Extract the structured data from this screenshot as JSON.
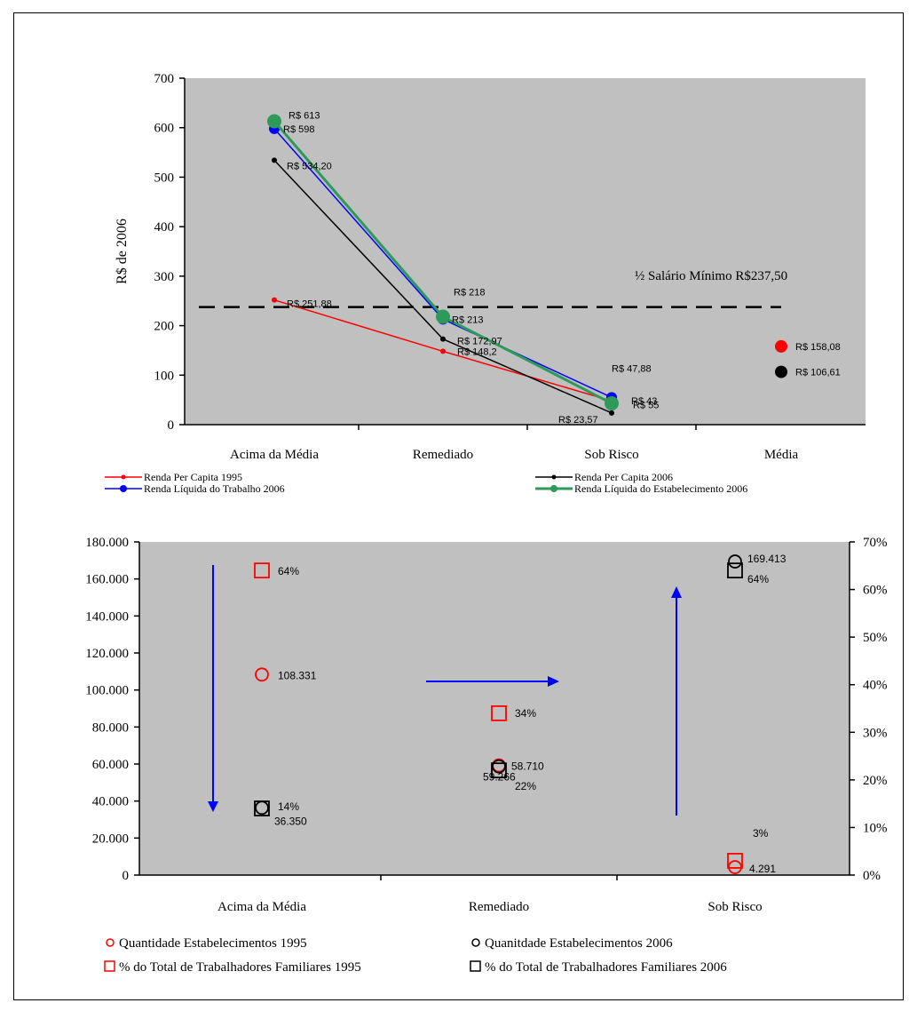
{
  "chart_data": [
    {
      "type": "line",
      "title": "",
      "ylabel": "R$ de 2006",
      "xlabel": "",
      "ylim": [
        0,
        700
      ],
      "yticks": [
        "0",
        "100",
        "200",
        "300",
        "400",
        "500",
        "600",
        "700"
      ],
      "categories": [
        "Acima da Média",
        "Remediado",
        "Sob Risco",
        "Média"
      ],
      "series": [
        {
          "name": "Renda Per Capita 1995",
          "color": "#ff0000",
          "values": [
            251.88,
            148.2,
            47.88,
            null
          ]
        },
        {
          "name": "Renda Per Capita 2006",
          "color": "#000000",
          "values": [
            534.2,
            172.97,
            23.57,
            null
          ]
        },
        {
          "name": "Renda Líquida do Trabalho 2006",
          "color": "#0000ff",
          "values": [
            598,
            213,
            55,
            null
          ]
        },
        {
          "name": "Renda Líquida do Estabelecimento 2006",
          "color": "#2e9a5a",
          "values": [
            613,
            218,
            43,
            null
          ]
        }
      ],
      "data_labels": [
        {
          "text": "R$ 613",
          "cat": 0,
          "value": 613
        },
        {
          "text": "R$ 598",
          "cat": 0,
          "value": 598
        },
        {
          "text": "R$ 534,20",
          "cat": 0,
          "value": 534.2
        },
        {
          "text": "R$ 251,88",
          "cat": 0,
          "value": 251.88
        },
        {
          "text": "R$ 218",
          "cat": 1,
          "value": 218
        },
        {
          "text": "R$ 213",
          "cat": 1,
          "value": 213
        },
        {
          "text": "R$ 172,97",
          "cat": 1,
          "value": 172.97
        },
        {
          "text": "R$ 148,2",
          "cat": 1,
          "value": 148.2
        },
        {
          "text": "R$ 47,88",
          "cat": 2,
          "value": 47.88
        },
        {
          "text": "R$ 43",
          "cat": 2,
          "value": 43
        },
        {
          "text": "R$ 55",
          "cat": 2,
          "value": 55
        },
        {
          "text": "R$ 23,57",
          "cat": 2,
          "value": 23.57
        }
      ],
      "average_points": [
        {
          "text": "R$ 158,08",
          "value": 158.08,
          "color": "#ff0000"
        },
        {
          "text": "R$ 106,61",
          "value": 106.61,
          "color": "#000000"
        }
      ],
      "reference_line": {
        "label": "½ Salário Mínimo R$237,50",
        "value": 237.5
      },
      "background": "#c0c0c0",
      "legend": "bottom"
    },
    {
      "type": "scatter",
      "title": "",
      "xlabel": "",
      "ylabel": "",
      "categories": [
        "Acima da Média",
        "Remediado",
        "Sob Risco"
      ],
      "ylim": [
        0,
        180000
      ],
      "yticks": [
        "0",
        "20.000",
        "40.000",
        "60.000",
        "80.000",
        "100.000",
        "120.000",
        "140.000",
        "160.000",
        "180.000"
      ],
      "y2lim": [
        0,
        70
      ],
      "y2ticks": [
        "0%",
        "10%",
        "20%",
        "30%",
        "40%",
        "50%",
        "60%",
        "70%"
      ],
      "series": [
        {
          "name": "Quantidade Estabelecimentos 1995",
          "marker": "circle",
          "color": "#ff0000",
          "axis": "left",
          "values": [
            108331,
            59266,
            4291
          ]
        },
        {
          "name": "Quanitdade Estabelecimentos 2006",
          "marker": "circle",
          "color": "#000000",
          "axis": "left",
          "values": [
            36350,
            58710,
            169413
          ]
        },
        {
          "name": "% do Total de Trabalhadores Familiares 1995",
          "marker": "square",
          "color": "#ff0000",
          "axis": "right",
          "values": [
            64,
            34,
            3
          ]
        },
        {
          "name": "% do Total de Trabalhadores Familiares 2006",
          "marker": "square",
          "color": "#000000",
          "axis": "right",
          "values": [
            14,
            22,
            64
          ]
        }
      ],
      "data_labels": [
        {
          "text": "64%",
          "cat": 0,
          "axis": "right",
          "value": 64
        },
        {
          "text": "108.331",
          "cat": 0,
          "axis": "left",
          "value": 108331
        },
        {
          "text": "14%",
          "cat": 0,
          "axis": "right",
          "value": 14
        },
        {
          "text": "36.350",
          "cat": 0,
          "axis": "left",
          "value": 36350
        },
        {
          "text": "34%",
          "cat": 1,
          "axis": "right",
          "value": 34
        },
        {
          "text": "59.266",
          "cat": 1,
          "axis": "left",
          "value": 59266
        },
        {
          "text": "58.710",
          "cat": 1,
          "axis": "left",
          "value": 58710
        },
        {
          "text": "22%",
          "cat": 1,
          "axis": "right",
          "value": 22
        },
        {
          "text": "169.413",
          "cat": 2,
          "axis": "left",
          "value": 169413
        },
        {
          "text": "64%",
          "cat": 2,
          "axis": "right",
          "value": 64
        },
        {
          "text": "3%",
          "cat": 2,
          "axis": "right",
          "value": 3
        },
        {
          "text": "4.291",
          "cat": 2,
          "axis": "left",
          "value": 4291
        }
      ],
      "background": "#c0c0c0",
      "legend": "bottom"
    }
  ]
}
